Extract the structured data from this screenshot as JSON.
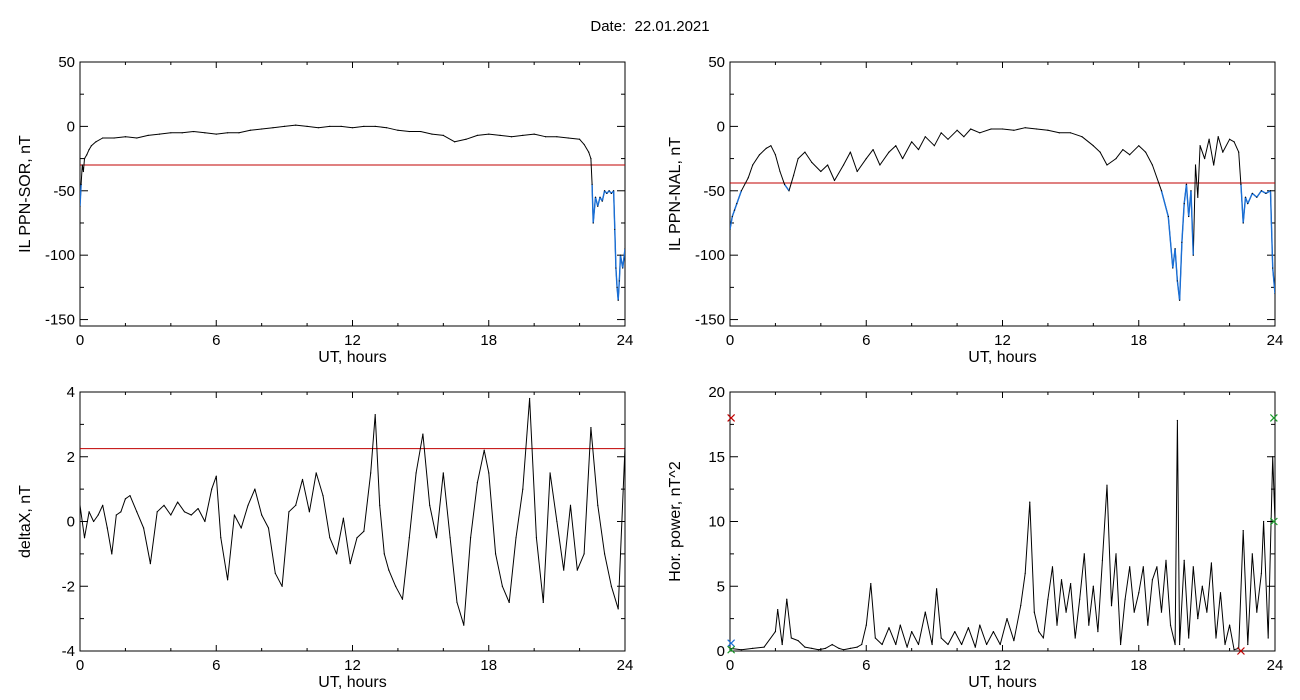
{
  "page": {
    "title": "Date:  22.01.2021"
  },
  "colors": {
    "data_line": "#000000",
    "threshold_line": "#c00000",
    "below_threshold": "#1a6fd6",
    "marker_red": "#c00000",
    "marker_green": "#1a9a2a",
    "marker_blue": "#1a6fd6"
  },
  "chart_data": [
    {
      "type": "line",
      "xlabel": "UT, hours",
      "ylabel": "IL PPN-SOR, nT",
      "xlim": [
        0,
        24
      ],
      "ylim": [
        -155,
        50
      ],
      "xticks": [
        0,
        6,
        12,
        18,
        24
      ],
      "yticks": [
        50,
        0,
        -50,
        -100,
        -150
      ],
      "threshold": -30,
      "below_threshold_colored": true,
      "series": [
        {
          "x": [
            0,
            0.05,
            0.1,
            0.15,
            0.2,
            0.3,
            0.4,
            0.5,
            0.7,
            1,
            1.5,
            2,
            2.5,
            3,
            3.5,
            4,
            4.5,
            5,
            5.5,
            6,
            6.5,
            7,
            7.5,
            8,
            8.5,
            9,
            9.5,
            10,
            10.5,
            11,
            11.5,
            12,
            12.5,
            13,
            13.5,
            14,
            14.5,
            15,
            15.5,
            16,
            16.5,
            17,
            17.5,
            18,
            18.5,
            19,
            19.5,
            20,
            20.5,
            21,
            21.5,
            22,
            22.2,
            22.4,
            22.5,
            22.55,
            22.6,
            22.7,
            22.8,
            22.9,
            23,
            23.1,
            23.2,
            23.3,
            23.4,
            23.5,
            23.55,
            23.6,
            23.65,
            23.7,
            23.75,
            23.8,
            23.9,
            24
          ],
          "y": [
            -62,
            -45,
            -30,
            -35,
            -25,
            -22,
            -18,
            -15,
            -12,
            -9,
            -9,
            -8,
            -9,
            -7,
            -6,
            -5,
            -5,
            -4,
            -5,
            -6,
            -5,
            -5,
            -3,
            -2,
            -1,
            0,
            1,
            0,
            -1,
            0,
            0,
            -1,
            0,
            0,
            -1,
            -3,
            -4,
            -4,
            -6,
            -7,
            -12,
            -10,
            -7,
            -6,
            -7,
            -8,
            -7,
            -6,
            -8,
            -8,
            -9,
            -10,
            -14,
            -20,
            -25,
            -45,
            -75,
            -55,
            -62,
            -55,
            -58,
            -50,
            -52,
            -50,
            -52,
            -50,
            -80,
            -110,
            -125,
            -135,
            -120,
            -100,
            -110,
            -95
          ]
        }
      ]
    },
    {
      "type": "line",
      "xlabel": "UT, hours",
      "ylabel": "IL PPN-NAL, nT",
      "xlim": [
        0,
        24
      ],
      "ylim": [
        -155,
        50
      ],
      "xticks": [
        0,
        6,
        12,
        18,
        24
      ],
      "yticks": [
        50,
        0,
        -50,
        -100,
        -150
      ],
      "threshold": -44,
      "below_threshold_colored": true,
      "series": [
        {
          "x": [
            0,
            0.1,
            0.2,
            0.3,
            0.5,
            0.8,
            1,
            1.3,
            1.6,
            1.8,
            2,
            2.2,
            2.4,
            2.6,
            2.8,
            3,
            3.3,
            3.6,
            4,
            4.3,
            4.6,
            5,
            5.3,
            5.6,
            6,
            6.3,
            6.6,
            7,
            7.3,
            7.6,
            8,
            8.3,
            8.6,
            9,
            9.3,
            9.6,
            10,
            10.3,
            10.6,
            11,
            11.5,
            12,
            12.5,
            13,
            13.5,
            14,
            14.5,
            15,
            15.5,
            16,
            16.3,
            16.6,
            17,
            17.3,
            17.6,
            18,
            18.3,
            18.6,
            19,
            19.3,
            19.5,
            19.6,
            19.7,
            19.8,
            19.9,
            20,
            20.1,
            20.2,
            20.3,
            20.4,
            20.5,
            20.6,
            20.7,
            20.9,
            21.1,
            21.3,
            21.5,
            21.7,
            22,
            22.2,
            22.4,
            22.5,
            22.6,
            22.7,
            22.8,
            23,
            23.2,
            23.4,
            23.6,
            23.8,
            23.9,
            24
          ],
          "y": [
            -80,
            -70,
            -65,
            -60,
            -50,
            -40,
            -30,
            -22,
            -17,
            -15,
            -22,
            -35,
            -45,
            -50,
            -38,
            -25,
            -20,
            -28,
            -35,
            -30,
            -42,
            -30,
            -20,
            -35,
            -25,
            -18,
            -30,
            -20,
            -15,
            -25,
            -12,
            -18,
            -8,
            -15,
            -5,
            -10,
            -3,
            -8,
            -2,
            -5,
            -2,
            -2,
            -3,
            -1,
            -2,
            -3,
            -5,
            -5,
            -8,
            -15,
            -20,
            -30,
            -25,
            -18,
            -22,
            -15,
            -20,
            -30,
            -50,
            -70,
            -110,
            -95,
            -120,
            -135,
            -90,
            -60,
            -45,
            -70,
            -50,
            -100,
            -30,
            -55,
            -15,
            -25,
            -10,
            -30,
            -8,
            -20,
            -10,
            -12,
            -20,
            -45,
            -75,
            -55,
            -60,
            -52,
            -55,
            -50,
            -52,
            -50,
            -110,
            -130
          ]
        }
      ]
    },
    {
      "type": "line",
      "xlabel": "UT, hours",
      "ylabel": "deltaX, nT",
      "xlim": [
        0,
        24
      ],
      "ylim": [
        -4,
        4
      ],
      "xticks": [
        0,
        6,
        12,
        18,
        24
      ],
      "yticks": [
        4,
        2,
        0,
        -2,
        -4
      ],
      "threshold": 2.25,
      "series": [
        {
          "x": [
            0,
            0.2,
            0.4,
            0.6,
            0.8,
            1,
            1.2,
            1.4,
            1.6,
            1.8,
            2,
            2.2,
            2.5,
            2.8,
            3.1,
            3.4,
            3.7,
            4,
            4.3,
            4.6,
            4.9,
            5.2,
            5.5,
            5.8,
            6,
            6.2,
            6.5,
            6.8,
            7.1,
            7.4,
            7.7,
            8,
            8.3,
            8.6,
            8.9,
            9.2,
            9.5,
            9.8,
            10.1,
            10.4,
            10.7,
            11,
            11.3,
            11.6,
            11.9,
            12.2,
            12.5,
            12.8,
            13,
            13.2,
            13.4,
            13.6,
            13.9,
            14.2,
            14.5,
            14.8,
            15.1,
            15.4,
            15.7,
            16,
            16.3,
            16.6,
            16.9,
            17.2,
            17.5,
            17.8,
            18,
            18.3,
            18.6,
            18.9,
            19.2,
            19.5,
            19.8,
            20.1,
            20.4,
            20.7,
            21,
            21.3,
            21.6,
            21.9,
            22.2,
            22.5,
            22.8,
            23.1,
            23.4,
            23.7,
            24
          ],
          "y": [
            0.5,
            -0.5,
            0.3,
            0,
            0.2,
            0.5,
            -0.2,
            -1.0,
            0.2,
            0.3,
            0.7,
            0.8,
            0.3,
            -0.2,
            -1.3,
            0.3,
            0.5,
            0.2,
            0.6,
            0.3,
            0.2,
            0.4,
            0,
            1.0,
            1.4,
            -0.5,
            -1.8,
            0.2,
            -0.2,
            0.5,
            1.0,
            0.2,
            -0.2,
            -1.6,
            -2.0,
            0.3,
            0.5,
            1.3,
            0.3,
            1.5,
            0.8,
            -0.5,
            -1.0,
            0.1,
            -1.3,
            -0.5,
            -0.3,
            1.5,
            3.3,
            0.5,
            -1.0,
            -1.5,
            -2.0,
            -2.4,
            -0.5,
            1.5,
            2.7,
            0.5,
            -0.5,
            1.5,
            -0.5,
            -2.5,
            -3.2,
            -0.5,
            1.2,
            2.2,
            1.5,
            -1.0,
            -2.0,
            -2.5,
            -0.5,
            1.0,
            3.8,
            -0.5,
            -2.5,
            1.5,
            0,
            -1.5,
            0.5,
            -1.5,
            -1.0,
            2.9,
            0.5,
            -1.0,
            -2.0,
            -2.7,
            2.3
          ]
        }
      ]
    },
    {
      "type": "line",
      "xlabel": "UT, hours",
      "ylabel": "Hor. power, nT^2",
      "xlim": [
        0,
        24
      ],
      "ylim": [
        0,
        20
      ],
      "xticks": [
        0,
        6,
        12,
        18,
        24
      ],
      "yticks": [
        20,
        15,
        10,
        5,
        0
      ],
      "series": [
        {
          "x": [
            0,
            0.5,
            1,
            1.5,
            2,
            2.1,
            2.3,
            2.5,
            2.7,
            3,
            3.3,
            3.6,
            3.9,
            4.2,
            4.5,
            4.8,
            5,
            5.3,
            5.6,
            5.8,
            6,
            6.2,
            6.4,
            6.7,
            7,
            7.3,
            7.5,
            7.8,
            8,
            8.3,
            8.6,
            8.9,
            9.1,
            9.3,
            9.6,
            9.9,
            10.2,
            10.5,
            10.8,
            11,
            11.3,
            11.6,
            11.9,
            12.2,
            12.5,
            12.8,
            13,
            13.2,
            13.4,
            13.6,
            13.8,
            14,
            14.2,
            14.4,
            14.6,
            14.8,
            15,
            15.2,
            15.4,
            15.6,
            15.8,
            16,
            16.2,
            16.4,
            16.6,
            16.8,
            17,
            17.2,
            17.4,
            17.6,
            17.8,
            18,
            18.2,
            18.4,
            18.6,
            18.8,
            19,
            19.2,
            19.4,
            19.6,
            19.7,
            19.8,
            20,
            20.2,
            20.4,
            20.6,
            20.8,
            21,
            21.2,
            21.4,
            21.6,
            21.8,
            22,
            22.2,
            22.4,
            22.6,
            22.8,
            23,
            23.2,
            23.4,
            23.5,
            23.7,
            23.9,
            24
          ],
          "y": [
            0.2,
            0.1,
            0.2,
            0.3,
            1.5,
            3.2,
            0.5,
            4.0,
            1.0,
            0.8,
            0.3,
            0.2,
            0.1,
            0.2,
            0.5,
            0.2,
            0.1,
            0.2,
            0.3,
            0.5,
            2.0,
            5.2,
            1.0,
            0.5,
            1.8,
            0.5,
            2.0,
            0.3,
            1.5,
            0.5,
            3.0,
            0.5,
            4.8,
            1.0,
            0.5,
            1.5,
            0.5,
            1.8,
            0.3,
            2.0,
            0.5,
            1.5,
            0.5,
            2.5,
            0.8,
            3.5,
            6.0,
            11.5,
            3.0,
            1.5,
            1.0,
            4.0,
            6.5,
            2.0,
            5.5,
            3.0,
            5.2,
            1.0,
            4.0,
            7.5,
            2.0,
            5.0,
            1.5,
            7.0,
            12.8,
            3.5,
            7.5,
            0.5,
            4.0,
            6.5,
            3.0,
            4.5,
            6.5,
            2.0,
            5.5,
            6.5,
            3.0,
            7.0,
            2.0,
            0.5,
            17.8,
            0.5,
            7.0,
            1.0,
            6.5,
            2.5,
            5.0,
            3.0,
            6.8,
            1.0,
            4.5,
            0.5,
            2.0,
            0.1,
            0.2,
            9.3,
            0.5,
            7.5,
            3.0,
            6.0,
            10.0,
            1.0,
            15.0,
            10.0
          ]
        }
      ],
      "markers": [
        {
          "x": 0.05,
          "y": 18.0,
          "symbol": "x",
          "color": "red"
        },
        {
          "x": 0.05,
          "y": 0.6,
          "symbol": "x",
          "color": "blue"
        },
        {
          "x": 0.05,
          "y": 0.1,
          "symbol": "x",
          "color": "green"
        },
        {
          "x": 22.5,
          "y": 0.0,
          "symbol": "x",
          "color": "red"
        },
        {
          "x": 23.95,
          "y": 18.0,
          "symbol": "x",
          "color": "green"
        },
        {
          "x": 23.95,
          "y": 10.0,
          "symbol": "x",
          "color": "green"
        }
      ]
    }
  ]
}
